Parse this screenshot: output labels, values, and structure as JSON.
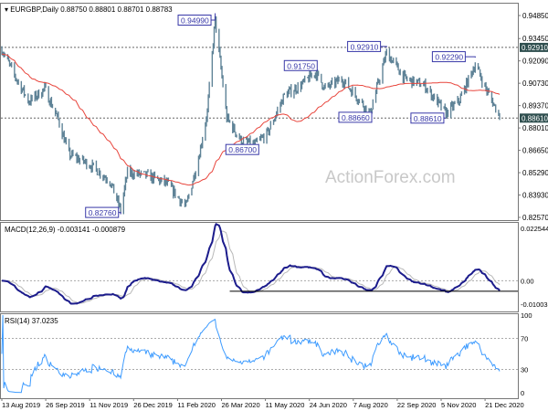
{
  "header": {
    "symbol": "EURGBP,Daily",
    "ohlc": "0.88750 0.88801 0.88701 0.88783"
  },
  "watermark": "ActionForex.com",
  "colors": {
    "bars": "#5f8397",
    "ma": "#e8453c",
    "macd": "#1c1c8c",
    "signal": "#b8b8b8",
    "rsi": "#3d9bff",
    "label_border": "#3838a8",
    "highlight_bg": "#2f4f4f"
  },
  "chart_data": [
    {
      "type": "ohlc",
      "name": "price",
      "title": "EURGBP,Daily",
      "y_ticks": [
        "0.94850",
        "0.93450",
        "0.92090",
        "0.90730",
        "0.89370",
        "0.88010",
        "0.86650",
        "0.85290",
        "0.83930",
        "0.82570"
      ],
      "ylim": [
        0.8257,
        0.9485
      ],
      "highlight_levels": [
        {
          "text": "0.92910",
          "value": 0.9291
        },
        {
          "text": "0.88610",
          "value": 0.8861
        }
      ],
      "moving_average": "red line",
      "annotations": [
        {
          "text": "0.94990",
          "date": "2020-03-19",
          "price": 0.9499,
          "box_offset_days": -38
        },
        {
          "text": "0.82760",
          "date": "2019-12-13",
          "price": 0.8276,
          "box_offset_days": -36
        },
        {
          "text": "0.86700",
          "date": "2020-04-29",
          "price": 0.867,
          "box_offset_days": -30
        },
        {
          "text": "0.91750",
          "date": "2020-06-30",
          "price": 0.9175,
          "box_offset_days": -32
        },
        {
          "text": "0.88660",
          "date": "2020-08-25",
          "price": 0.8866,
          "box_offset_days": -32
        },
        {
          "text": "0.92910",
          "date": "2020-09-11",
          "price": 0.9291,
          "box_offset_days": -40
        },
        {
          "text": "0.88610",
          "date": "2020-11-11",
          "price": 0.8861,
          "box_offset_days": -36
        },
        {
          "text": "0.92290",
          "date": "2020-12-11",
          "price": 0.9229,
          "box_offset_days": -44
        }
      ],
      "close_keypoints": [
        [
          "2019-08-13",
          0.928
        ],
        [
          "2019-08-26",
          0.912
        ],
        [
          "2019-09-10",
          0.896
        ],
        [
          "2019-09-26",
          0.904
        ],
        [
          "2019-10-10",
          0.885
        ],
        [
          "2019-10-21",
          0.864
        ],
        [
          "2019-11-11",
          0.858
        ],
        [
          "2019-12-02",
          0.848
        ],
        [
          "2019-12-13",
          0.83
        ],
        [
          "2019-12-20",
          0.853
        ],
        [
          "2020-01-10",
          0.851
        ],
        [
          "2020-01-30",
          0.846
        ],
        [
          "2020-02-18",
          0.832
        ],
        [
          "2020-03-02",
          0.862
        ],
        [
          "2020-03-11",
          0.89
        ],
        [
          "2020-03-19",
          0.946
        ],
        [
          "2020-03-31",
          0.886
        ],
        [
          "2020-04-15",
          0.872
        ],
        [
          "2020-04-29",
          0.87
        ],
        [
          "2020-05-12",
          0.877
        ],
        [
          "2020-05-29",
          0.9
        ],
        [
          "2020-06-15",
          0.906
        ],
        [
          "2020-06-30",
          0.914
        ],
        [
          "2020-07-10",
          0.904
        ],
        [
          "2020-07-27",
          0.91
        ],
        [
          "2020-08-10",
          0.9
        ],
        [
          "2020-08-25",
          0.889
        ],
        [
          "2020-09-11",
          0.926
        ],
        [
          "2020-09-30",
          0.91
        ],
        [
          "2020-10-20",
          0.906
        ],
        [
          "2020-11-11",
          0.889
        ],
        [
          "2020-11-25",
          0.897
        ],
        [
          "2020-12-11",
          0.919
        ],
        [
          "2020-12-21",
          0.905
        ],
        [
          "2021-01-05",
          0.8875
        ]
      ]
    },
    {
      "type": "line",
      "name": "MACD",
      "label": "MACD(12,26,9) -0.003141 -0.000879",
      "y_ticks": [
        "0.022544",
        "0.00",
        "-0.010039"
      ],
      "ylim": [
        -0.010039,
        0.022544
      ]
    },
    {
      "type": "line",
      "name": "RSI",
      "label": "RSI(14) 37.0235",
      "y_ticks": [
        "100",
        "70",
        "30",
        "0"
      ],
      "ylim": [
        0,
        100
      ],
      "levels": [
        70,
        30
      ]
    }
  ],
  "x_ticks": [
    "13 Aug 2019",
    "26 Sep 2019",
    "11 Nov 2019",
    "26 Dec 2019",
    "11 Feb 2020",
    "26 Mar 2020",
    "11 May 2020",
    "24 Jun 2020",
    "7 Aug 2020",
    "22 Sep 2020",
    "5 Nov 2020",
    "21 Dec 2020"
  ]
}
